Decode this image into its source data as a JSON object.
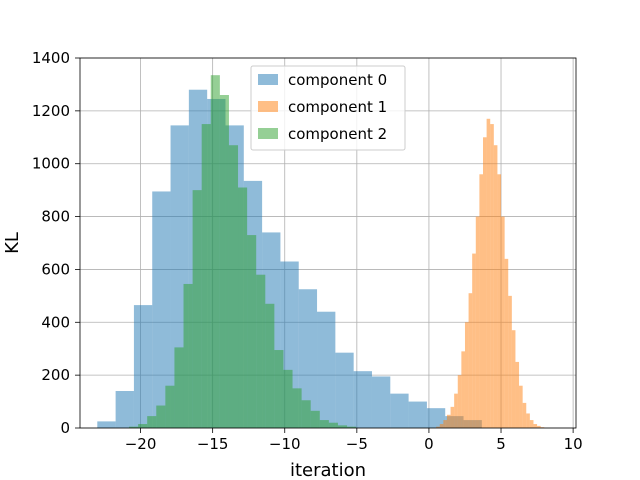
{
  "chart_data": {
    "type": "bar",
    "subtype": "histogram",
    "title": "",
    "xlabel": "iteration",
    "ylabel": "KL",
    "xlim": [
      -24.2,
      10.2
    ],
    "ylim": [
      0,
      1400
    ],
    "xticks": [
      -20,
      -15,
      -10,
      -5,
      0,
      5,
      10
    ],
    "xtick_labels": [
      "−20",
      "−15",
      "−10",
      "−5",
      "0",
      "5",
      "10"
    ],
    "yticks": [
      0,
      200,
      400,
      600,
      800,
      1000,
      1200,
      1400
    ],
    "ytick_labels": [
      "0",
      "200",
      "400",
      "600",
      "800",
      "1000",
      "1200",
      "1400"
    ],
    "grid": true,
    "legend_position": "top-center",
    "series": [
      {
        "name": "component 0",
        "color": "#1f77b4",
        "alpha": 0.5,
        "bin_start": -23.0,
        "bin_width": 1.27,
        "counts": [
          25,
          140,
          465,
          895,
          1145,
          1280,
          1245,
          1145,
          935,
          740,
          630,
          525,
          440,
          285,
          215,
          195,
          130,
          100,
          75,
          45,
          30
        ]
      },
      {
        "name": "component 1",
        "color": "#ff7f0e",
        "alpha": 0.5,
        "bin_start": 0.5,
        "bin_width": 0.25,
        "counts": [
          5,
          15,
          30,
          50,
          80,
          130,
          200,
          290,
          400,
          510,
          660,
          800,
          960,
          1100,
          1170,
          1150,
          1070,
          960,
          800,
          640,
          500,
          370,
          250,
          160,
          95,
          55,
          30,
          15,
          8,
          3
        ]
      },
      {
        "name": "component 2",
        "color": "#2ca02c",
        "alpha": 0.5,
        "bin_start": -20.8,
        "bin_width": 0.63,
        "counts": [
          5,
          15,
          45,
          85,
          160,
          305,
          545,
          900,
          1150,
          1335,
          1260,
          1070,
          910,
          730,
          580,
          470,
          295,
          220,
          150,
          105,
          65,
          30,
          20,
          10,
          5
        ]
      }
    ]
  }
}
